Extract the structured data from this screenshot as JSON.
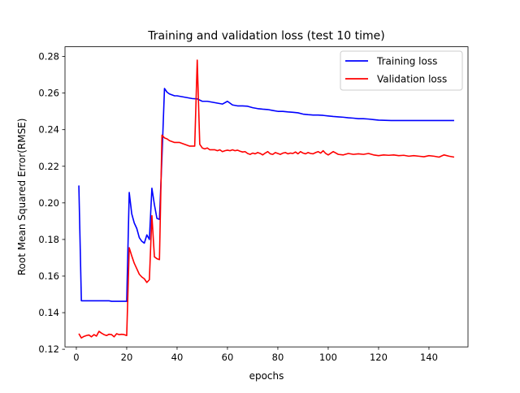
{
  "chart_data": {
    "type": "line",
    "title": "Training and validation loss (test 10 time)",
    "xlabel": "epochs",
    "ylabel": "Root Mean Squared Error(RMSE)",
    "xlim": [
      -4.5,
      155.5
    ],
    "ylim": [
      0.1213,
      0.2853
    ],
    "xticks": [
      0,
      20,
      40,
      60,
      80,
      100,
      120,
      140
    ],
    "yticks": [
      0.12,
      0.14,
      0.16,
      0.18,
      0.2,
      0.22,
      0.24,
      0.26,
      0.28
    ],
    "ytick_labels": [
      "0.12",
      "0.14",
      "0.16",
      "0.18",
      "0.20",
      "0.22",
      "0.24",
      "0.26",
      "0.28"
    ],
    "legend_position": "top-right",
    "grid": false,
    "series": [
      {
        "name": "Training loss",
        "color": "#0000ff",
        "x": [
          1,
          2,
          3,
          4,
          5,
          6,
          7,
          8,
          9,
          10,
          11,
          12,
          13,
          14,
          15,
          16,
          17,
          18,
          19,
          20,
          21,
          22,
          23,
          24,
          25,
          26,
          27,
          28,
          29,
          30,
          31,
          32,
          33,
          34,
          35,
          36,
          37,
          38,
          39,
          40,
          42,
          44,
          46,
          48,
          50,
          52,
          54,
          56,
          58,
          60,
          62,
          64,
          66,
          68,
          70,
          72,
          74,
          76,
          78,
          80,
          82,
          84,
          86,
          88,
          90,
          92,
          94,
          96,
          98,
          100,
          102,
          104,
          106,
          108,
          110,
          112,
          114,
          116,
          118,
          120,
          125,
          130,
          135,
          140,
          145,
          150
        ],
        "values": [
          0.2095,
          0.1465,
          0.1465,
          0.1465,
          0.1465,
          0.1465,
          0.1465,
          0.1465,
          0.1465,
          0.1465,
          0.1465,
          0.1465,
          0.1465,
          0.1462,
          0.1462,
          0.1462,
          0.1462,
          0.1462,
          0.1462,
          0.1462,
          0.2057,
          0.194,
          0.189,
          0.186,
          0.181,
          0.179,
          0.178,
          0.1825,
          0.18,
          0.208,
          0.199,
          0.1915,
          0.191,
          0.225,
          0.2625,
          0.2605,
          0.2595,
          0.259,
          0.2585,
          0.2585,
          0.258,
          0.2575,
          0.257,
          0.2568,
          0.2555,
          0.2555,
          0.255,
          0.2545,
          0.254,
          0.2555,
          0.2535,
          0.253,
          0.253,
          0.2528,
          0.252,
          0.2515,
          0.2512,
          0.251,
          0.2505,
          0.25,
          0.25,
          0.2497,
          0.2495,
          0.2492,
          0.2485,
          0.2482,
          0.248,
          0.248,
          0.2478,
          0.2475,
          0.2472,
          0.247,
          0.2468,
          0.2465,
          0.2463,
          0.246,
          0.246,
          0.2458,
          0.2455,
          0.2452,
          0.245,
          0.245,
          0.245,
          0.245,
          0.245,
          0.245
        ]
      },
      {
        "name": "Validation loss",
        "color": "#ff0000",
        "x": [
          1,
          2,
          3,
          4,
          5,
          6,
          7,
          8,
          9,
          10,
          11,
          12,
          13,
          14,
          15,
          16,
          17,
          18,
          19,
          20,
          21,
          22,
          23,
          24,
          25,
          26,
          27,
          28,
          29,
          30,
          31,
          32,
          33,
          34,
          35,
          36,
          37,
          38,
          39,
          40,
          41,
          42,
          43,
          44,
          45,
          46,
          47,
          48,
          49,
          50,
          51,
          52,
          53,
          54,
          55,
          56,
          57,
          58,
          59,
          60,
          61,
          62,
          63,
          64,
          65,
          66,
          67,
          68,
          69,
          70,
          71,
          72,
          73,
          74,
          75,
          76,
          77,
          78,
          79,
          80,
          81,
          82,
          83,
          84,
          85,
          86,
          87,
          88,
          89,
          90,
          91,
          92,
          93,
          94,
          95,
          96,
          97,
          98,
          99,
          100,
          102,
          104,
          106,
          108,
          110,
          112,
          114,
          116,
          118,
          120,
          122,
          124,
          126,
          128,
          130,
          132,
          134,
          136,
          138,
          140,
          142,
          144,
          146,
          148,
          150
        ],
        "values": [
          0.1285,
          0.1262,
          0.127,
          0.1275,
          0.1278,
          0.1268,
          0.128,
          0.1272,
          0.1298,
          0.1288,
          0.128,
          0.1275,
          0.1282,
          0.128,
          0.1268,
          0.1285,
          0.128,
          0.1282,
          0.128,
          0.1275,
          0.1755,
          0.171,
          0.167,
          0.164,
          0.161,
          0.1595,
          0.1585,
          0.1565,
          0.158,
          0.193,
          0.1705,
          0.1695,
          0.169,
          0.237,
          0.2355,
          0.235,
          0.234,
          0.2335,
          0.233,
          0.233,
          0.233,
          0.2325,
          0.232,
          0.2315,
          0.231,
          0.231,
          0.231,
          0.278,
          0.232,
          0.23,
          0.2295,
          0.23,
          0.229,
          0.229,
          0.229,
          0.2285,
          0.229,
          0.228,
          0.2285,
          0.2288,
          0.2285,
          0.229,
          0.2285,
          0.2288,
          0.2282,
          0.2278,
          0.228,
          0.227,
          0.2265,
          0.2272,
          0.2268,
          0.2275,
          0.227,
          0.2262,
          0.2272,
          0.228,
          0.2268,
          0.2265,
          0.2275,
          0.227,
          0.2265,
          0.2272,
          0.2275,
          0.2268,
          0.2272,
          0.227,
          0.2278,
          0.2268,
          0.228,
          0.2272,
          0.2268,
          0.2275,
          0.227,
          0.2268,
          0.2275,
          0.228,
          0.2272,
          0.2285,
          0.227,
          0.2262,
          0.228,
          0.2265,
          0.2262,
          0.227,
          0.2265,
          0.2268,
          0.2265,
          0.227,
          0.2262,
          0.2258,
          0.2262,
          0.226,
          0.2262,
          0.2258,
          0.226,
          0.2255,
          0.2258,
          0.2255,
          0.2252,
          0.2258,
          0.2255,
          0.225,
          0.2262,
          0.2255,
          0.225
        ]
      }
    ]
  }
}
